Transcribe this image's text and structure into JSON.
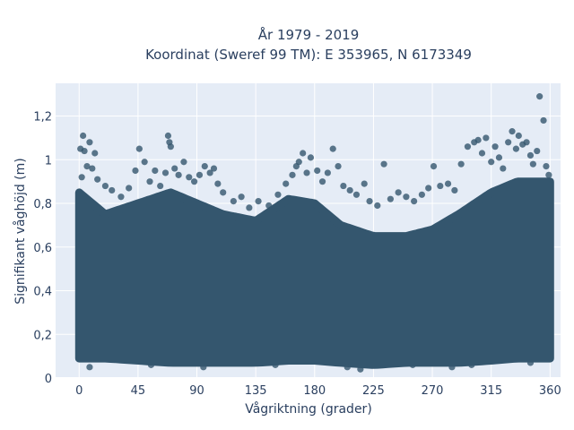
{
  "chart_data": {
    "type": "scatter",
    "title": "År 1979 - 2019",
    "subtitle": "Koordinat (Sweref 99 TM): E 353965, N 6173349",
    "xlabel": "Vågriktning (grader)",
    "ylabel": "Signifikant våghöjd (m)",
    "xlim": [
      -18,
      368
    ],
    "ylim": [
      0,
      1.35
    ],
    "x_ticks": [
      0,
      45,
      90,
      135,
      180,
      225,
      270,
      315,
      360
    ],
    "x_tick_labels": [
      "0",
      "45",
      "90",
      "135",
      "180",
      "225",
      "270",
      "315",
      "360"
    ],
    "y_ticks": [
      0,
      0.2,
      0.4,
      0.6,
      0.8,
      1.0,
      1.2
    ],
    "y_tick_labels": [
      "0",
      "0,2",
      "0,4",
      "0,6",
      "0,8",
      "1",
      "1,2"
    ],
    "grid": true,
    "legend": "none",
    "colors": {
      "marker": "#34566e",
      "plot_bg": "#e5ecf6",
      "grid": "#ffffff",
      "text": "#2a3f5f"
    },
    "series": [
      {
        "band_envelope": {
          "x": [
            0,
            20,
            45,
            70,
            90,
            110,
            135,
            160,
            180,
            200,
            225,
            250,
            270,
            290,
            315,
            335,
            360
          ],
          "y_min": [
            0.09,
            0.09,
            0.08,
            0.07,
            0.07,
            0.07,
            0.07,
            0.08,
            0.08,
            0.07,
            0.06,
            0.07,
            0.07,
            0.07,
            0.08,
            0.09,
            0.09
          ],
          "y_max": [
            0.85,
            0.75,
            0.8,
            0.85,
            0.8,
            0.75,
            0.72,
            0.82,
            0.8,
            0.7,
            0.65,
            0.65,
            0.68,
            0.75,
            0.85,
            0.9,
            0.9
          ]
        },
        "points": [
          {
            "x": 1,
            "y": 1.05
          },
          {
            "x": 3,
            "y": 1.11
          },
          {
            "x": 4,
            "y": 1.04
          },
          {
            "x": 6,
            "y": 0.97
          },
          {
            "x": 8,
            "y": 1.08
          },
          {
            "x": 12,
            "y": 1.03
          },
          {
            "x": 10,
            "y": 0.96
          },
          {
            "x": 14,
            "y": 0.91
          },
          {
            "x": 2,
            "y": 0.92
          },
          {
            "x": 20,
            "y": 0.88
          },
          {
            "x": 25,
            "y": 0.86
          },
          {
            "x": 32,
            "y": 0.83
          },
          {
            "x": 38,
            "y": 0.87
          },
          {
            "x": 43,
            "y": 0.95
          },
          {
            "x": 46,
            "y": 1.05
          },
          {
            "x": 50,
            "y": 0.99
          },
          {
            "x": 54,
            "y": 0.9
          },
          {
            "x": 58,
            "y": 0.95
          },
          {
            "x": 62,
            "y": 0.88
          },
          {
            "x": 66,
            "y": 0.94
          },
          {
            "x": 68,
            "y": 1.11
          },
          {
            "x": 69,
            "y": 1.08
          },
          {
            "x": 70,
            "y": 1.06
          },
          {
            "x": 73,
            "y": 0.96
          },
          {
            "x": 76,
            "y": 0.93
          },
          {
            "x": 80,
            "y": 0.99
          },
          {
            "x": 84,
            "y": 0.92
          },
          {
            "x": 88,
            "y": 0.9
          },
          {
            "x": 92,
            "y": 0.93
          },
          {
            "x": 96,
            "y": 0.97
          },
          {
            "x": 100,
            "y": 0.94
          },
          {
            "x": 103,
            "y": 0.96
          },
          {
            "x": 106,
            "y": 0.89
          },
          {
            "x": 110,
            "y": 0.85
          },
          {
            "x": 118,
            "y": 0.81
          },
          {
            "x": 124,
            "y": 0.83
          },
          {
            "x": 130,
            "y": 0.78
          },
          {
            "x": 137,
            "y": 0.81
          },
          {
            "x": 145,
            "y": 0.79
          },
          {
            "x": 152,
            "y": 0.84
          },
          {
            "x": 158,
            "y": 0.89
          },
          {
            "x": 163,
            "y": 0.93
          },
          {
            "x": 166,
            "y": 0.97
          },
          {
            "x": 168,
            "y": 0.99
          },
          {
            "x": 171,
            "y": 1.03
          },
          {
            "x": 174,
            "y": 0.94
          },
          {
            "x": 177,
            "y": 1.01
          },
          {
            "x": 182,
            "y": 0.95
          },
          {
            "x": 186,
            "y": 0.9
          },
          {
            "x": 190,
            "y": 0.94
          },
          {
            "x": 194,
            "y": 1.05
          },
          {
            "x": 198,
            "y": 0.97
          },
          {
            "x": 202,
            "y": 0.88
          },
          {
            "x": 207,
            "y": 0.86
          },
          {
            "x": 212,
            "y": 0.84
          },
          {
            "x": 218,
            "y": 0.89
          },
          {
            "x": 222,
            "y": 0.81
          },
          {
            "x": 228,
            "y": 0.79
          },
          {
            "x": 233,
            "y": 0.98
          },
          {
            "x": 238,
            "y": 0.82
          },
          {
            "x": 244,
            "y": 0.85
          },
          {
            "x": 250,
            "y": 0.83
          },
          {
            "x": 256,
            "y": 0.81
          },
          {
            "x": 262,
            "y": 0.84
          },
          {
            "x": 267,
            "y": 0.87
          },
          {
            "x": 271,
            "y": 0.97
          },
          {
            "x": 276,
            "y": 0.88
          },
          {
            "x": 282,
            "y": 0.89
          },
          {
            "x": 287,
            "y": 0.86
          },
          {
            "x": 292,
            "y": 0.98
          },
          {
            "x": 297,
            "y": 1.06
          },
          {
            "x": 302,
            "y": 1.08
          },
          {
            "x": 305,
            "y": 1.09
          },
          {
            "x": 308,
            "y": 1.03
          },
          {
            "x": 311,
            "y": 1.1
          },
          {
            "x": 315,
            "y": 0.99
          },
          {
            "x": 318,
            "y": 1.06
          },
          {
            "x": 321,
            "y": 1.01
          },
          {
            "x": 324,
            "y": 0.96
          },
          {
            "x": 328,
            "y": 1.08
          },
          {
            "x": 331,
            "y": 1.13
          },
          {
            "x": 334,
            "y": 1.05
          },
          {
            "x": 336,
            "y": 1.11
          },
          {
            "x": 339,
            "y": 1.07
          },
          {
            "x": 342,
            "y": 1.08
          },
          {
            "x": 345,
            "y": 1.02
          },
          {
            "x": 347,
            "y": 0.98
          },
          {
            "x": 350,
            "y": 1.04
          },
          {
            "x": 352,
            "y": 1.29
          },
          {
            "x": 355,
            "y": 1.18
          },
          {
            "x": 357,
            "y": 0.97
          },
          {
            "x": 359,
            "y": 0.93
          },
          {
            "x": 8,
            "y": 0.05
          },
          {
            "x": 55,
            "y": 0.06
          },
          {
            "x": 95,
            "y": 0.05
          },
          {
            "x": 150,
            "y": 0.06
          },
          {
            "x": 205,
            "y": 0.05
          },
          {
            "x": 215,
            "y": 0.04
          },
          {
            "x": 255,
            "y": 0.06
          },
          {
            "x": 285,
            "y": 0.05
          },
          {
            "x": 300,
            "y": 0.06
          },
          {
            "x": 345,
            "y": 0.07
          }
        ]
      }
    ]
  }
}
